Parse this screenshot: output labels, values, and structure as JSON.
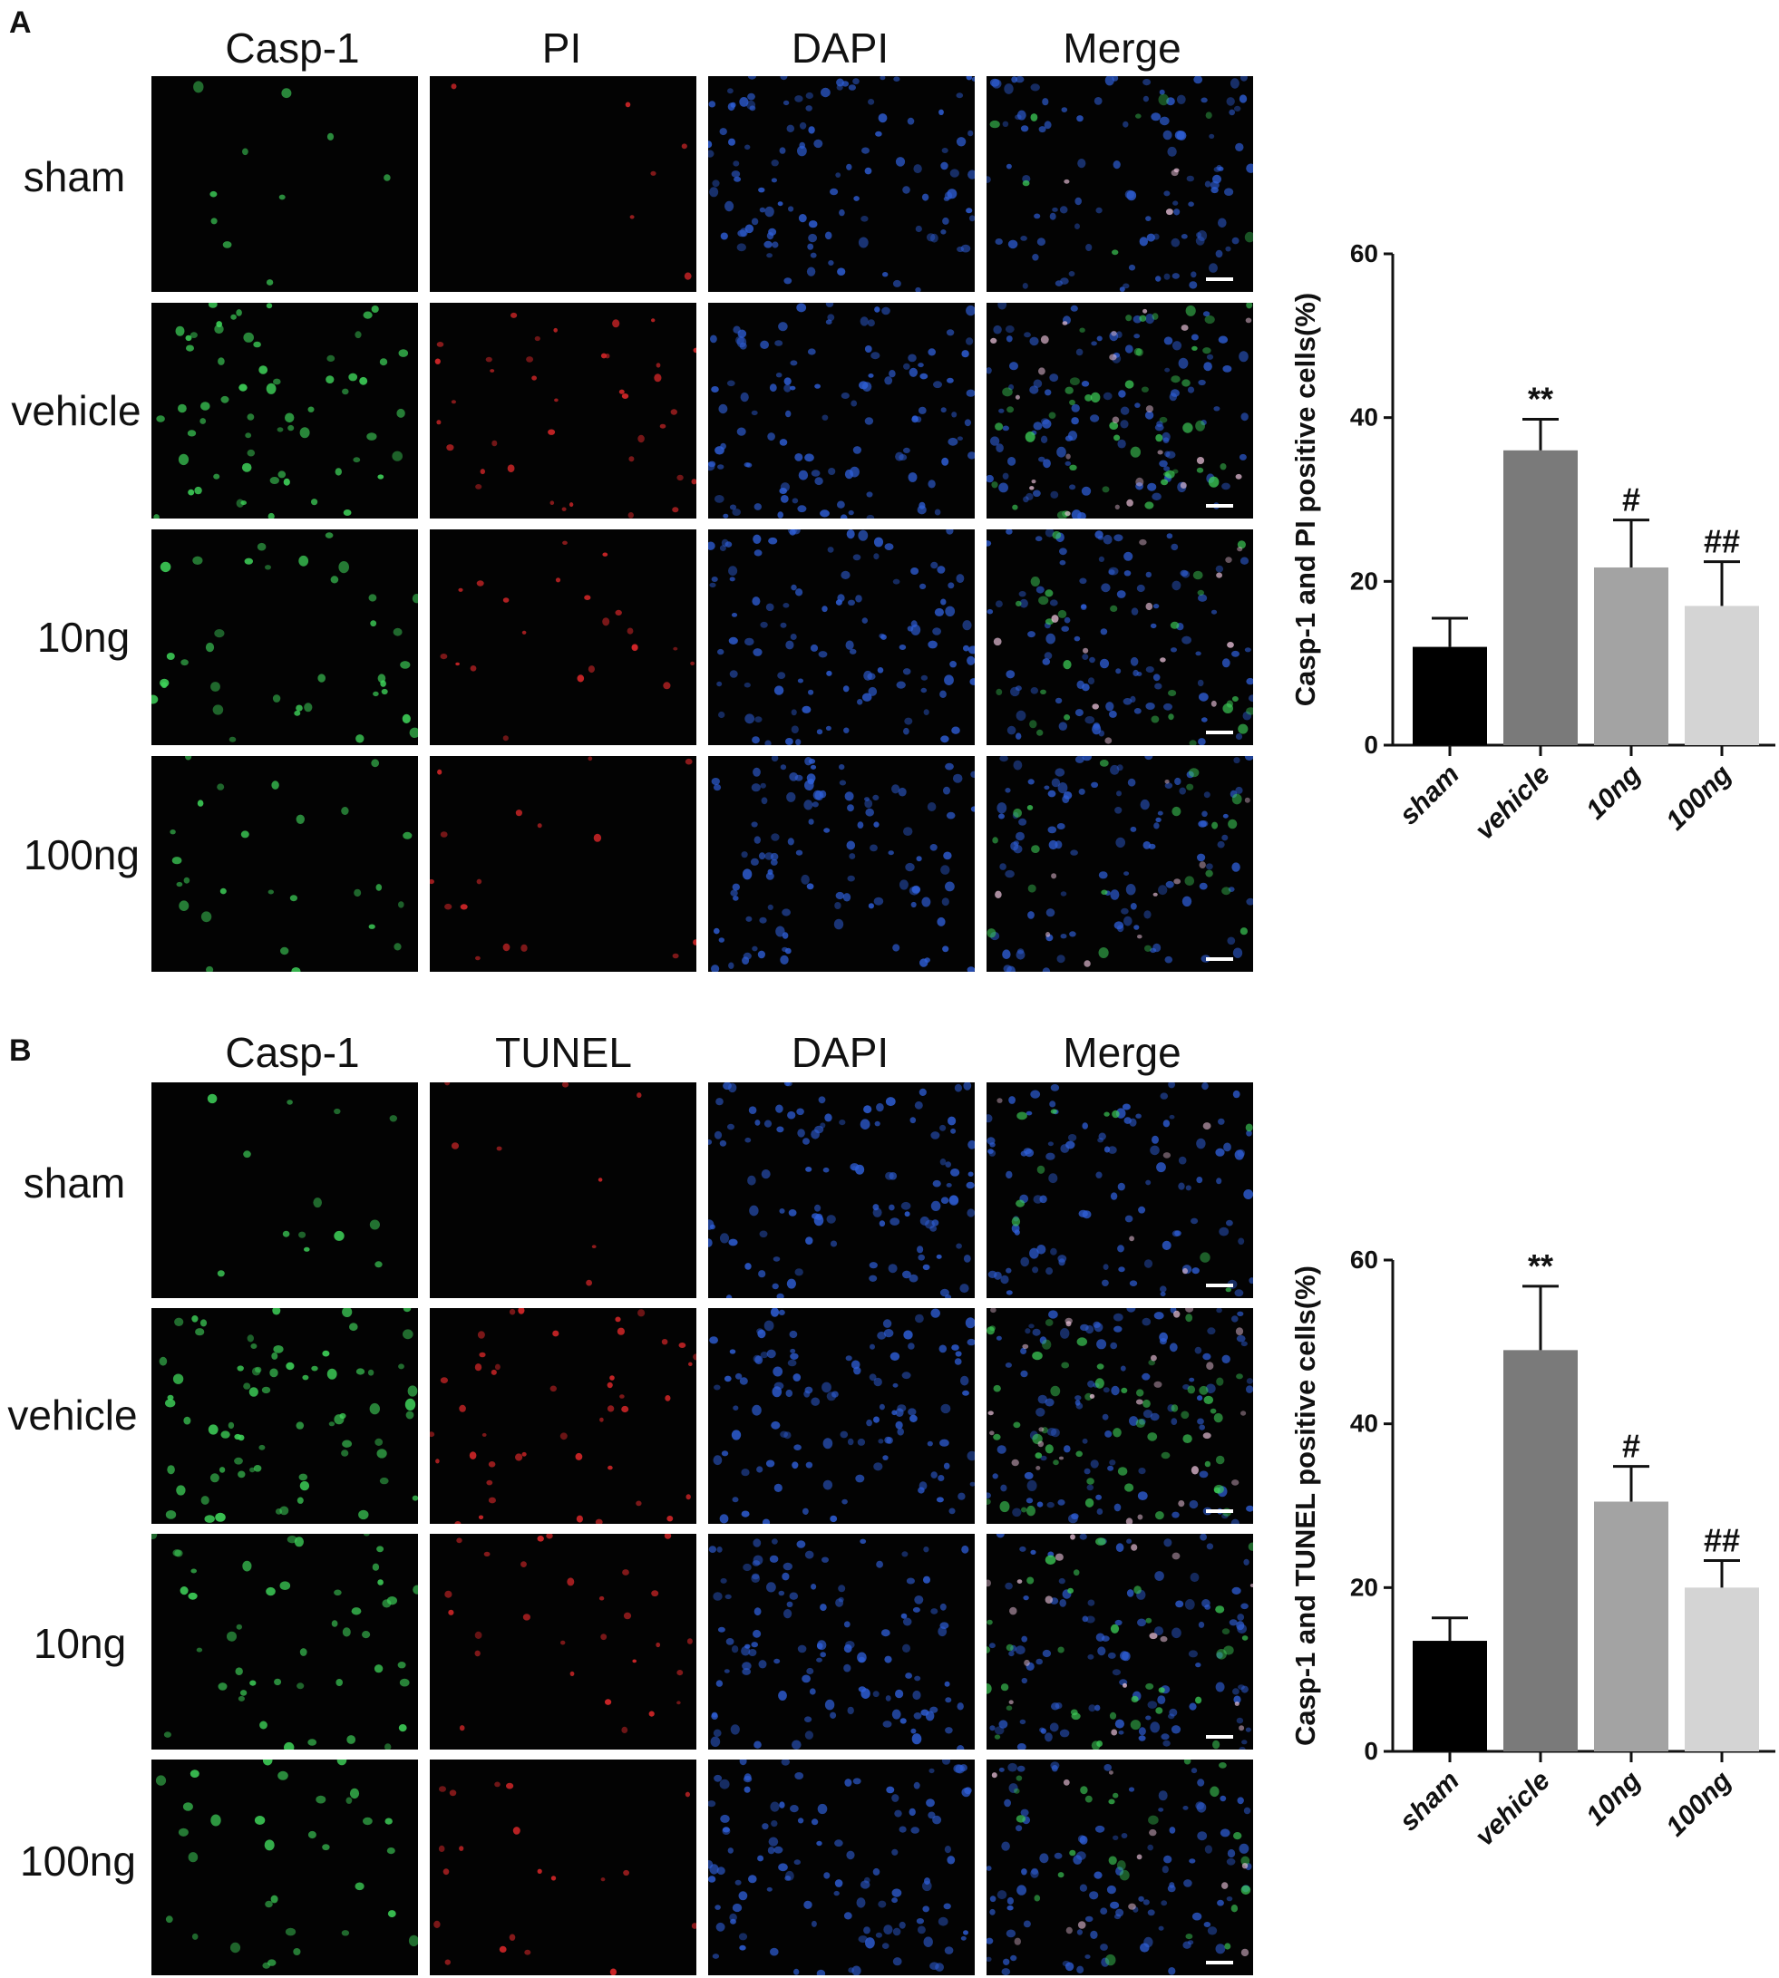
{
  "panels": [
    {
      "letter": "A",
      "columns": [
        "Casp-1",
        "PI",
        "DAPI",
        "Merge"
      ],
      "rows": [
        "sham",
        "vehicle",
        "10ng",
        "100ng"
      ]
    },
    {
      "letter": "B",
      "columns": [
        "Casp-1",
        "TUNEL",
        "DAPI",
        "Merge"
      ],
      "rows": [
        "sham",
        "vehicle",
        "10ng",
        "100ng"
      ]
    }
  ],
  "colors": {
    "green": "#3fd35a",
    "red": "#e0292b",
    "blue": "#2f5fd8",
    "bar_sham": "#000000",
    "bar_vehicle": "#7a7a7a",
    "bar_10ng": "#a3a3a3",
    "bar_100ng": "#d4d4d4"
  },
  "chart_data": [
    {
      "type": "bar",
      "categories": [
        "sham",
        "vehicle",
        "10ng",
        "100ng"
      ],
      "values": [
        12,
        36,
        21.7,
        17
      ],
      "errors": [
        3.5,
        3.8,
        5.8,
        5.4
      ],
      "annotations": [
        "",
        "**",
        "#",
        "##"
      ],
      "ylabel": "Casp-1 and PI positive cells(%)",
      "ylim": [
        0,
        60
      ],
      "yticks": [
        0,
        20,
        40,
        60
      ]
    },
    {
      "type": "bar",
      "categories": [
        "sham",
        "vehicle",
        "10ng",
        "100ng"
      ],
      "values": [
        13.5,
        49,
        30.5,
        20
      ],
      "errors": [
        2.8,
        7.8,
        4.3,
        3.3
      ],
      "annotations": [
        "",
        "**",
        "#",
        "##"
      ],
      "ylabel": "Casp-1 and TUNEL positive cells(%)",
      "ylim": [
        0,
        60
      ],
      "yticks": [
        0,
        20,
        40,
        60
      ]
    }
  ]
}
